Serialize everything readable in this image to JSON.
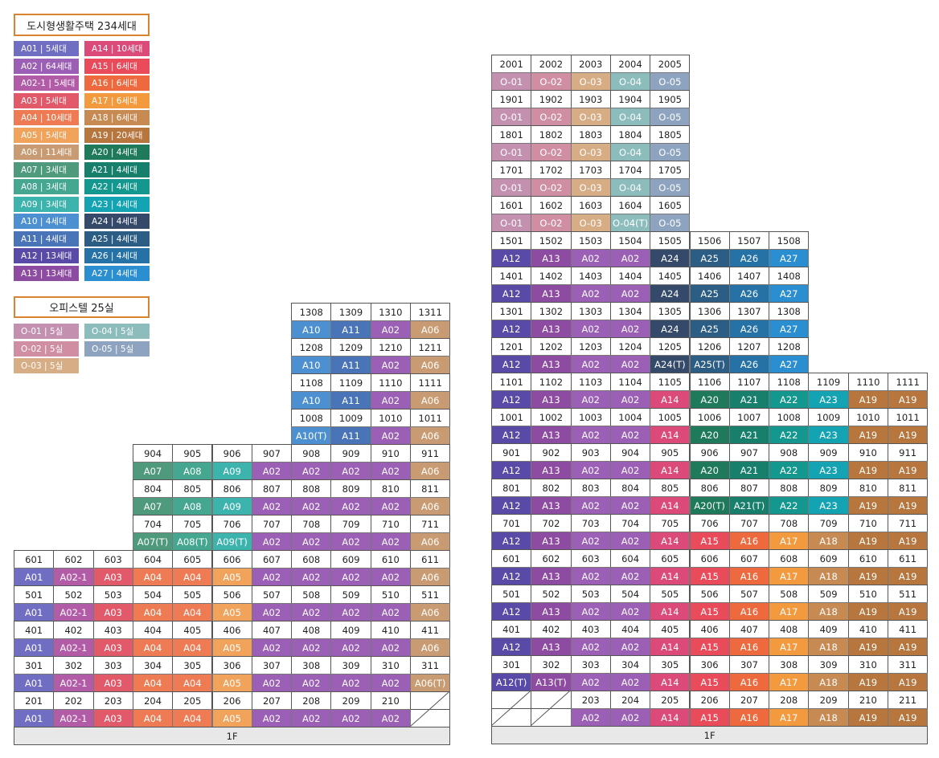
{
  "legend": {
    "housing_title": "도시형생활주택 234세대",
    "housing_col1": [
      {
        "code": "A01",
        "label": "A01 | 5세대"
      },
      {
        "code": "A02",
        "label": "A02 | 64세대"
      },
      {
        "code": "A02-1",
        "label": "A02-1 | 5세대"
      },
      {
        "code": "A03",
        "label": "A03 | 5세대"
      },
      {
        "code": "A04",
        "label": "A04 | 10세대"
      },
      {
        "code": "A05",
        "label": "A05 | 5세대"
      },
      {
        "code": "A06",
        "label": "A06 | 11세대"
      },
      {
        "code": "A07",
        "label": "A07 | 3세대"
      },
      {
        "code": "A08",
        "label": "A08 | 3세대"
      },
      {
        "code": "A09",
        "label": "A09 | 3세대"
      },
      {
        "code": "A10",
        "label": "A10 | 4세대"
      },
      {
        "code": "A11",
        "label": "A11 | 4세대"
      },
      {
        "code": "A12",
        "label": "A12 | 13세대"
      },
      {
        "code": "A13",
        "label": "A13 | 13세대"
      }
    ],
    "housing_col2": [
      {
        "code": "A14",
        "label": "A14 | 10세대"
      },
      {
        "code": "A15",
        "label": "A15 | 6세대"
      },
      {
        "code": "A16",
        "label": "A16 | 6세대"
      },
      {
        "code": "A17",
        "label": "A17 | 6세대"
      },
      {
        "code": "A18",
        "label": "A18 | 6세대"
      },
      {
        "code": "A19",
        "label": "A19 | 20세대"
      },
      {
        "code": "A20",
        "label": "A20 | 4세대"
      },
      {
        "code": "A21",
        "label": "A21 | 4세대"
      },
      {
        "code": "A22",
        "label": "A22 | 4세대"
      },
      {
        "code": "A23",
        "label": "A23 | 4세대"
      },
      {
        "code": "A24",
        "label": "A24 | 4세대"
      },
      {
        "code": "A25",
        "label": "A25 | 4세대"
      },
      {
        "code": "A26",
        "label": "A26 | 4세대"
      },
      {
        "code": "A27",
        "label": "A27 | 4세대"
      }
    ],
    "office_title": "오피스텔 25실",
    "office_items": [
      {
        "code": "O-01",
        "label": "O-01 | 5실"
      },
      {
        "code": "O-04",
        "label": "O-04 | 5실"
      },
      {
        "code": "O-02",
        "label": "O-02 | 5실"
      },
      {
        "code": "O-05",
        "label": "O-05 | 5실"
      },
      {
        "code": "O-03",
        "label": "O-03 | 5실"
      }
    ]
  },
  "colors": {
    "A01": "#6f6ec2",
    "A02": "#9b5fb5",
    "A02-1": "#b25ca8",
    "A03": "#e2596a",
    "A04": "#ee7b54",
    "A05": "#f1a25b",
    "A06": "#c99b73",
    "A07": "#4f9a7c",
    "A08": "#45a78f",
    "A09": "#3cb3ad",
    "A10": "#4d90d1",
    "A11": "#4a74b8",
    "A12": "#5a4aa8",
    "A13": "#8e4ba2",
    "A14": "#db4a78",
    "A15": "#e94b5b",
    "A16": "#ee6a3e",
    "A17": "#f49a3e",
    "A18": "#c88a53",
    "A19": "#b7763e",
    "A20": "#1f7a5c",
    "A21": "#177f6b",
    "A22": "#14978e",
    "A23": "#13a3b3",
    "A24": "#354a6a",
    "A25": "#2c5d84",
    "A26": "#2672a6",
    "A27": "#2b8ed0",
    "O-01": "#c490b0",
    "O-02": "#d08ea3",
    "O-03": "#d6ad85",
    "O-04": "#8cbcbc",
    "O-05": "#8ea3bf"
  },
  "buildings": {
    "left": {
      "columns": 11,
      "footer": "1F",
      "rows": [
        {
          "start": 7,
          "cells": [
            "1308",
            "1309",
            "1310",
            "1311"
          ]
        },
        {
          "start": 7,
          "cells": [
            "A10",
            "A11",
            "A02",
            "A06"
          ]
        },
        {
          "start": 7,
          "cells": [
            "1208",
            "1209",
            "1210",
            "1211"
          ]
        },
        {
          "start": 7,
          "cells": [
            "A10",
            "A11",
            "A02",
            "A06"
          ]
        },
        {
          "start": 7,
          "cells": [
            "1108",
            "1109",
            "1110",
            "1111"
          ]
        },
        {
          "start": 7,
          "cells": [
            "A10",
            "A11",
            "A02",
            "A06"
          ]
        },
        {
          "start": 7,
          "cells": [
            "1008",
            "1009",
            "1010",
            "1011"
          ]
        },
        {
          "start": 7,
          "cells": [
            "A10(T)",
            "A11",
            "A02",
            "A06"
          ]
        },
        {
          "start": 3,
          "cells": [
            "904",
            "905",
            "906",
            "907",
            "908",
            "909",
            "910",
            "911"
          ]
        },
        {
          "start": 3,
          "cells": [
            "A07",
            "A08",
            "A09",
            "A02",
            "A02",
            "A02",
            "A02",
            "A06"
          ]
        },
        {
          "start": 3,
          "cells": [
            "804",
            "805",
            "806",
            "807",
            "808",
            "809",
            "810",
            "811"
          ]
        },
        {
          "start": 3,
          "cells": [
            "A07",
            "A08",
            "A09",
            "A02",
            "A02",
            "A02",
            "A02",
            "A06"
          ]
        },
        {
          "start": 3,
          "cells": [
            "704",
            "705",
            "706",
            "707",
            "708",
            "709",
            "710",
            "711"
          ]
        },
        {
          "start": 3,
          "cells": [
            "A07(T)",
            "A08(T)",
            "A09(T)",
            "A02",
            "A02",
            "A02",
            "A02",
            "A06"
          ]
        },
        {
          "start": 0,
          "cells": [
            "601",
            "602",
            "603",
            "604",
            "605",
            "606",
            "607",
            "608",
            "609",
            "610",
            "611"
          ]
        },
        {
          "start": 0,
          "cells": [
            "A01",
            "A02-1",
            "A03",
            "A04",
            "A04",
            "A05",
            "A02",
            "A02",
            "A02",
            "A02",
            "A06"
          ]
        },
        {
          "start": 0,
          "cells": [
            "501",
            "502",
            "503",
            "504",
            "505",
            "506",
            "507",
            "508",
            "509",
            "510",
            "511"
          ]
        },
        {
          "start": 0,
          "cells": [
            "A01",
            "A02-1",
            "A03",
            "A04",
            "A04",
            "A05",
            "A02",
            "A02",
            "A02",
            "A02",
            "A06"
          ]
        },
        {
          "start": 0,
          "cells": [
            "401",
            "402",
            "403",
            "404",
            "405",
            "406",
            "407",
            "408",
            "409",
            "410",
            "411"
          ]
        },
        {
          "start": 0,
          "cells": [
            "A01",
            "A02-1",
            "A03",
            "A04",
            "A04",
            "A05",
            "A02",
            "A02",
            "A02",
            "A02",
            "A06"
          ]
        },
        {
          "start": 0,
          "cells": [
            "301",
            "302",
            "303",
            "304",
            "305",
            "306",
            "307",
            "308",
            "309",
            "310",
            "311"
          ]
        },
        {
          "start": 0,
          "cells": [
            "A01",
            "A02-1",
            "A03",
            "A04",
            "A04",
            "A05",
            "A02",
            "A02",
            "A02",
            "A02",
            "A06(T)"
          ]
        },
        {
          "start": 0,
          "cells": [
            "201",
            "202",
            "203",
            "204",
            "205",
            "206",
            "207",
            "208",
            "209",
            "210",
            "/"
          ]
        },
        {
          "start": 0,
          "cells": [
            "A01",
            "A02-1",
            "A03",
            "A04",
            "A04",
            "A05",
            "A02",
            "A02",
            "A02",
            "A02",
            ""
          ]
        }
      ]
    },
    "right": {
      "columns": 11,
      "footer": "1F",
      "rows": [
        {
          "start": 0,
          "cells": [
            "2001",
            "2002",
            "2003",
            "2004",
            "2005"
          ]
        },
        {
          "start": 0,
          "cells": [
            "O-01",
            "O-02",
            "O-03",
            "O-04",
            "O-05"
          ]
        },
        {
          "start": 0,
          "cells": [
            "1901",
            "1902",
            "1903",
            "1904",
            "1905"
          ]
        },
        {
          "start": 0,
          "cells": [
            "O-01",
            "O-02",
            "O-03",
            "O-04",
            "O-05"
          ]
        },
        {
          "start": 0,
          "cells": [
            "1801",
            "1802",
            "1803",
            "1804",
            "1805"
          ]
        },
        {
          "start": 0,
          "cells": [
            "O-01",
            "O-02",
            "O-03",
            "O-04",
            "O-05"
          ]
        },
        {
          "start": 0,
          "cells": [
            "1701",
            "1702",
            "1703",
            "1704",
            "1705"
          ]
        },
        {
          "start": 0,
          "cells": [
            "O-01",
            "O-02",
            "O-03",
            "O-04",
            "O-05"
          ]
        },
        {
          "start": 0,
          "cells": [
            "1601",
            "1602",
            "1603",
            "1604",
            "1605"
          ]
        },
        {
          "start": 0,
          "cells": [
            "O-01",
            "O-02",
            "O-03",
            "O-04(T)",
            "O-05"
          ]
        },
        {
          "start": 0,
          "cells": [
            "1501",
            "1502",
            "1503",
            "1504",
            "1505",
            "1506",
            "1507",
            "1508"
          ]
        },
        {
          "start": 0,
          "cells": [
            "A12",
            "A13",
            "A02",
            "A02",
            "A24",
            "A25",
            "A26",
            "A27"
          ]
        },
        {
          "start": 0,
          "cells": [
            "1401",
            "1402",
            "1403",
            "1404",
            "1405",
            "1406",
            "1407",
            "1408"
          ]
        },
        {
          "start": 0,
          "cells": [
            "A12",
            "A13",
            "A02",
            "A02",
            "A24",
            "A25",
            "A26",
            "A27"
          ]
        },
        {
          "start": 0,
          "cells": [
            "1301",
            "1302",
            "1303",
            "1304",
            "1305",
            "1306",
            "1307",
            "1308"
          ]
        },
        {
          "start": 0,
          "cells": [
            "A12",
            "A13",
            "A02",
            "A02",
            "A24",
            "A25",
            "A26",
            "A27"
          ]
        },
        {
          "start": 0,
          "cells": [
            "1201",
            "1202",
            "1203",
            "1204",
            "1205",
            "1206",
            "1207",
            "1208"
          ]
        },
        {
          "start": 0,
          "cells": [
            "A12",
            "A13",
            "A02",
            "A02",
            "A24(T)",
            "A25(T)",
            "A26",
            "A27"
          ]
        },
        {
          "start": 0,
          "cells": [
            "1101",
            "1102",
            "1103",
            "1104",
            "1105",
            "1106",
            "1107",
            "1108",
            "1109",
            "1110",
            "1111"
          ]
        },
        {
          "start": 0,
          "cells": [
            "A12",
            "A13",
            "A02",
            "A02",
            "A14",
            "A20",
            "A21",
            "A22",
            "A23",
            "A19",
            "A19"
          ]
        },
        {
          "start": 0,
          "cells": [
            "1001",
            "1002",
            "1003",
            "1004",
            "1005",
            "1006",
            "1007",
            "1008",
            "1009",
            "1010",
            "1011"
          ]
        },
        {
          "start": 0,
          "cells": [
            "A12",
            "A13",
            "A02",
            "A02",
            "A14",
            "A20",
            "A21",
            "A22",
            "A23",
            "A19",
            "A19"
          ]
        },
        {
          "start": 0,
          "cells": [
            "901",
            "902",
            "903",
            "904",
            "905",
            "906",
            "907",
            "908",
            "909",
            "910",
            "911"
          ]
        },
        {
          "start": 0,
          "cells": [
            "A12",
            "A13",
            "A02",
            "A02",
            "A14",
            "A20",
            "A21",
            "A22",
            "A23",
            "A19",
            "A19"
          ]
        },
        {
          "start": 0,
          "cells": [
            "801",
            "802",
            "803",
            "804",
            "805",
            "806",
            "807",
            "808",
            "809",
            "810",
            "811"
          ]
        },
        {
          "start": 0,
          "cells": [
            "A12",
            "A13",
            "A02",
            "A02",
            "A14",
            "A20(T)",
            "A21(T)",
            "A22",
            "A23",
            "A19",
            "A19"
          ]
        },
        {
          "start": 0,
          "cells": [
            "701",
            "702",
            "703",
            "704",
            "705",
            "706",
            "707",
            "708",
            "709",
            "710",
            "711"
          ]
        },
        {
          "start": 0,
          "cells": [
            "A12",
            "A13",
            "A02",
            "A02",
            "A14",
            "A15",
            "A16",
            "A17",
            "A18",
            "A19",
            "A19"
          ]
        },
        {
          "start": 0,
          "cells": [
            "601",
            "602",
            "603",
            "604",
            "605",
            "606",
            "607",
            "608",
            "609",
            "610",
            "611"
          ]
        },
        {
          "start": 0,
          "cells": [
            "A12",
            "A13",
            "A02",
            "A02",
            "A14",
            "A15",
            "A16",
            "A17",
            "A18",
            "A19",
            "A19"
          ]
        },
        {
          "start": 0,
          "cells": [
            "501",
            "502",
            "503",
            "504",
            "505",
            "506",
            "507",
            "508",
            "509",
            "510",
            "511"
          ]
        },
        {
          "start": 0,
          "cells": [
            "A12",
            "A13",
            "A02",
            "A02",
            "A14",
            "A15",
            "A16",
            "A17",
            "A18",
            "A19",
            "A19"
          ]
        },
        {
          "start": 0,
          "cells": [
            "401",
            "402",
            "403",
            "404",
            "405",
            "406",
            "407",
            "408",
            "409",
            "410",
            "411"
          ]
        },
        {
          "start": 0,
          "cells": [
            "A12",
            "A13",
            "A02",
            "A02",
            "A14",
            "A15",
            "A16",
            "A17",
            "A18",
            "A19",
            "A19"
          ]
        },
        {
          "start": 0,
          "cells": [
            "301",
            "302",
            "303",
            "304",
            "305",
            "306",
            "307",
            "308",
            "309",
            "310",
            "311"
          ]
        },
        {
          "start": 0,
          "cells": [
            "A12(T)",
            "A13(T)",
            "A02",
            "A02",
            "A14",
            "A15",
            "A16",
            "A17",
            "A18",
            "A19",
            "A19"
          ]
        },
        {
          "start": 0,
          "cells": [
            "/",
            "/",
            "203",
            "204",
            "205",
            "206",
            "207",
            "208",
            "209",
            "210",
            "211"
          ]
        },
        {
          "start": 0,
          "cells": [
            "",
            "",
            "A02",
            "A02",
            "A14",
            "A15",
            "A16",
            "A17",
            "A18",
            "A19",
            "A19"
          ]
        }
      ]
    }
  }
}
